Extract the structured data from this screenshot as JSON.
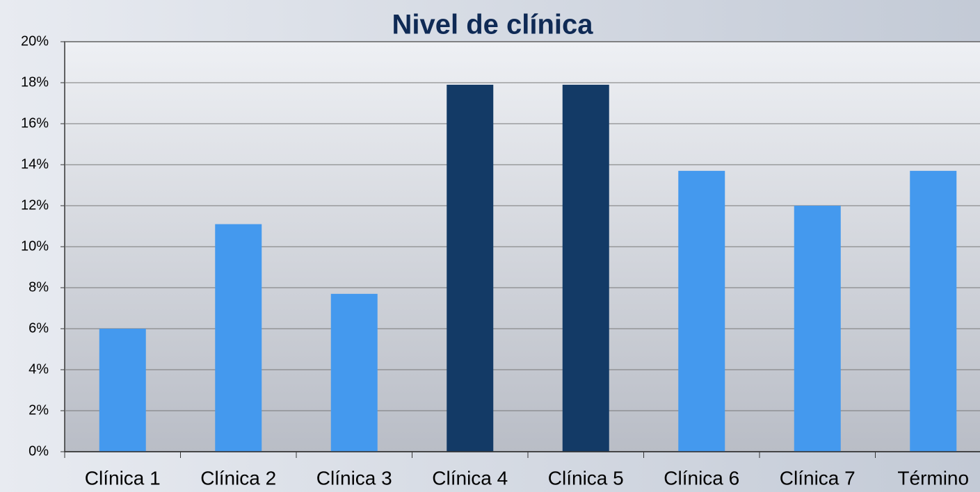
{
  "chart_data": {
    "type": "bar",
    "title": "Nivel de clínica",
    "categories": [
      "Clínica 1",
      "Clínica 2",
      "Clínica 3",
      "Clínica 4",
      "Clínica 5",
      "Clínica 6",
      "Clínica 7",
      "Término"
    ],
    "values": [
      6.0,
      11.1,
      7.7,
      17.9,
      17.9,
      13.7,
      12.0,
      13.7
    ],
    "colors": [
      "#4499ee",
      "#4499ee",
      "#4499ee",
      "#133a66",
      "#133a66",
      "#4499ee",
      "#4499ee",
      "#4499ee"
    ],
    "ylim": [
      0,
      20
    ],
    "yticks": [
      {
        "value": 0,
        "label": "0%"
      },
      {
        "value": 2,
        "label": "2%"
      },
      {
        "value": 4,
        "label": "4%"
      },
      {
        "value": 6,
        "label": "6%"
      },
      {
        "value": 8,
        "label": "8%"
      },
      {
        "value": 10,
        "label": "10%"
      },
      {
        "value": 12,
        "label": "12%"
      },
      {
        "value": 14,
        "label": "14%"
      },
      {
        "value": 16,
        "label": "16%"
      },
      {
        "value": 18,
        "label": "18%"
      },
      {
        "value": 20,
        "label": "20%"
      }
    ],
    "grid": true
  }
}
